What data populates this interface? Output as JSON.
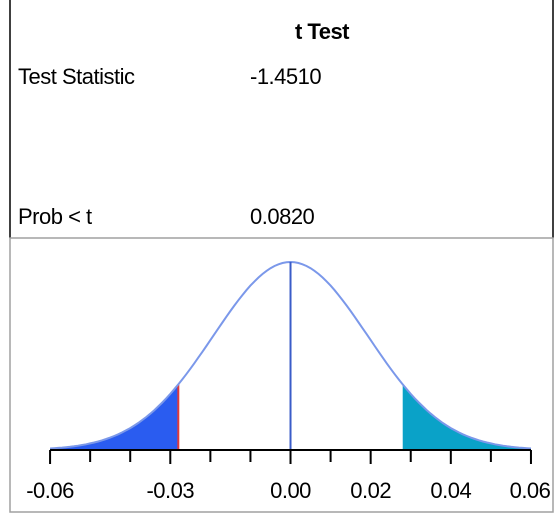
{
  "chart_data": {
    "type": "density",
    "title": "t Test",
    "rows": [
      {
        "label": "Test Statistic",
        "value": "-1.4510"
      },
      {
        "label": "Prob < t",
        "value": "0.0820"
      }
    ],
    "xlim": [
      -0.07,
      0.0655
    ],
    "xticks": [
      {
        "value": -0.06,
        "label": "-0.06"
      },
      {
        "value": -0.03,
        "label": "-0.03"
      },
      {
        "value": 0,
        "label": "0.00"
      },
      {
        "value": 0.02,
        "label": "0.02"
      },
      {
        "value": 0.04,
        "label": "0.04"
      },
      {
        "value": 0.06,
        "label": "0.06"
      }
    ],
    "minor_xticks": [
      -0.05,
      -0.04,
      -0.02,
      -0.01,
      0.01,
      0.03,
      0.05
    ],
    "curve_range": [
      -0.06,
      0.06
    ],
    "shade_lower": -0.028,
    "shade_upper": 0.028,
    "curve_color": "#7b98ea",
    "center_color": "#3a5cc8",
    "lower_color": "#2a5cf0",
    "upper_color": "#0aa2c8",
    "boundary_color": "#e03a3a"
  }
}
